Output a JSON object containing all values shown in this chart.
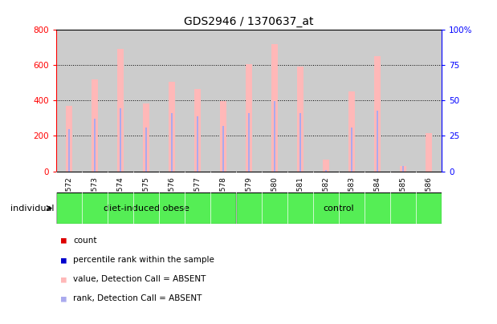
{
  "title": "GDS2946 / 1370637_at",
  "samples": [
    "GSM215572",
    "GSM215573",
    "GSM215574",
    "GSM215575",
    "GSM215576",
    "GSM215577",
    "GSM215578",
    "GSM215579",
    "GSM215580",
    "GSM215581",
    "GSM215582",
    "GSM215583",
    "GSM215584",
    "GSM215585",
    "GSM215586"
  ],
  "values_absent": [
    370,
    520,
    690,
    385,
    505,
    465,
    395,
    605,
    720,
    590,
    65,
    450,
    650,
    30,
    215
  ],
  "ranks_absent": [
    240,
    295,
    355,
    248,
    330,
    310,
    258,
    330,
    395,
    330,
    8,
    248,
    340,
    28,
    0
  ],
  "groups": [
    {
      "label": "diet-induced obese",
      "start": 0,
      "end": 7,
      "color": "#55ee55"
    },
    {
      "label": "control",
      "start": 7,
      "end": 15,
      "color": "#55ee55"
    }
  ],
  "group_boundary": 7,
  "ylim_left": [
    0,
    800
  ],
  "ylim_right": [
    0,
    100
  ],
  "yticks_left": [
    0,
    200,
    400,
    600,
    800
  ],
  "yticks_right": [
    0,
    25,
    50,
    75,
    100
  ],
  "value_bar_color": "#ffb8b8",
  "rank_bar_color": "#aaaaee",
  "bg_gray": "#cccccc",
  "individual_label": "individual",
  "legend_items": [
    {
      "color": "#dd0000",
      "label": "count"
    },
    {
      "color": "#0000cc",
      "label": "percentile rank within the sample"
    },
    {
      "color": "#ffb8b8",
      "label": "value, Detection Call = ABSENT"
    },
    {
      "color": "#aaaaee",
      "label": "rank, Detection Call = ABSENT"
    }
  ]
}
